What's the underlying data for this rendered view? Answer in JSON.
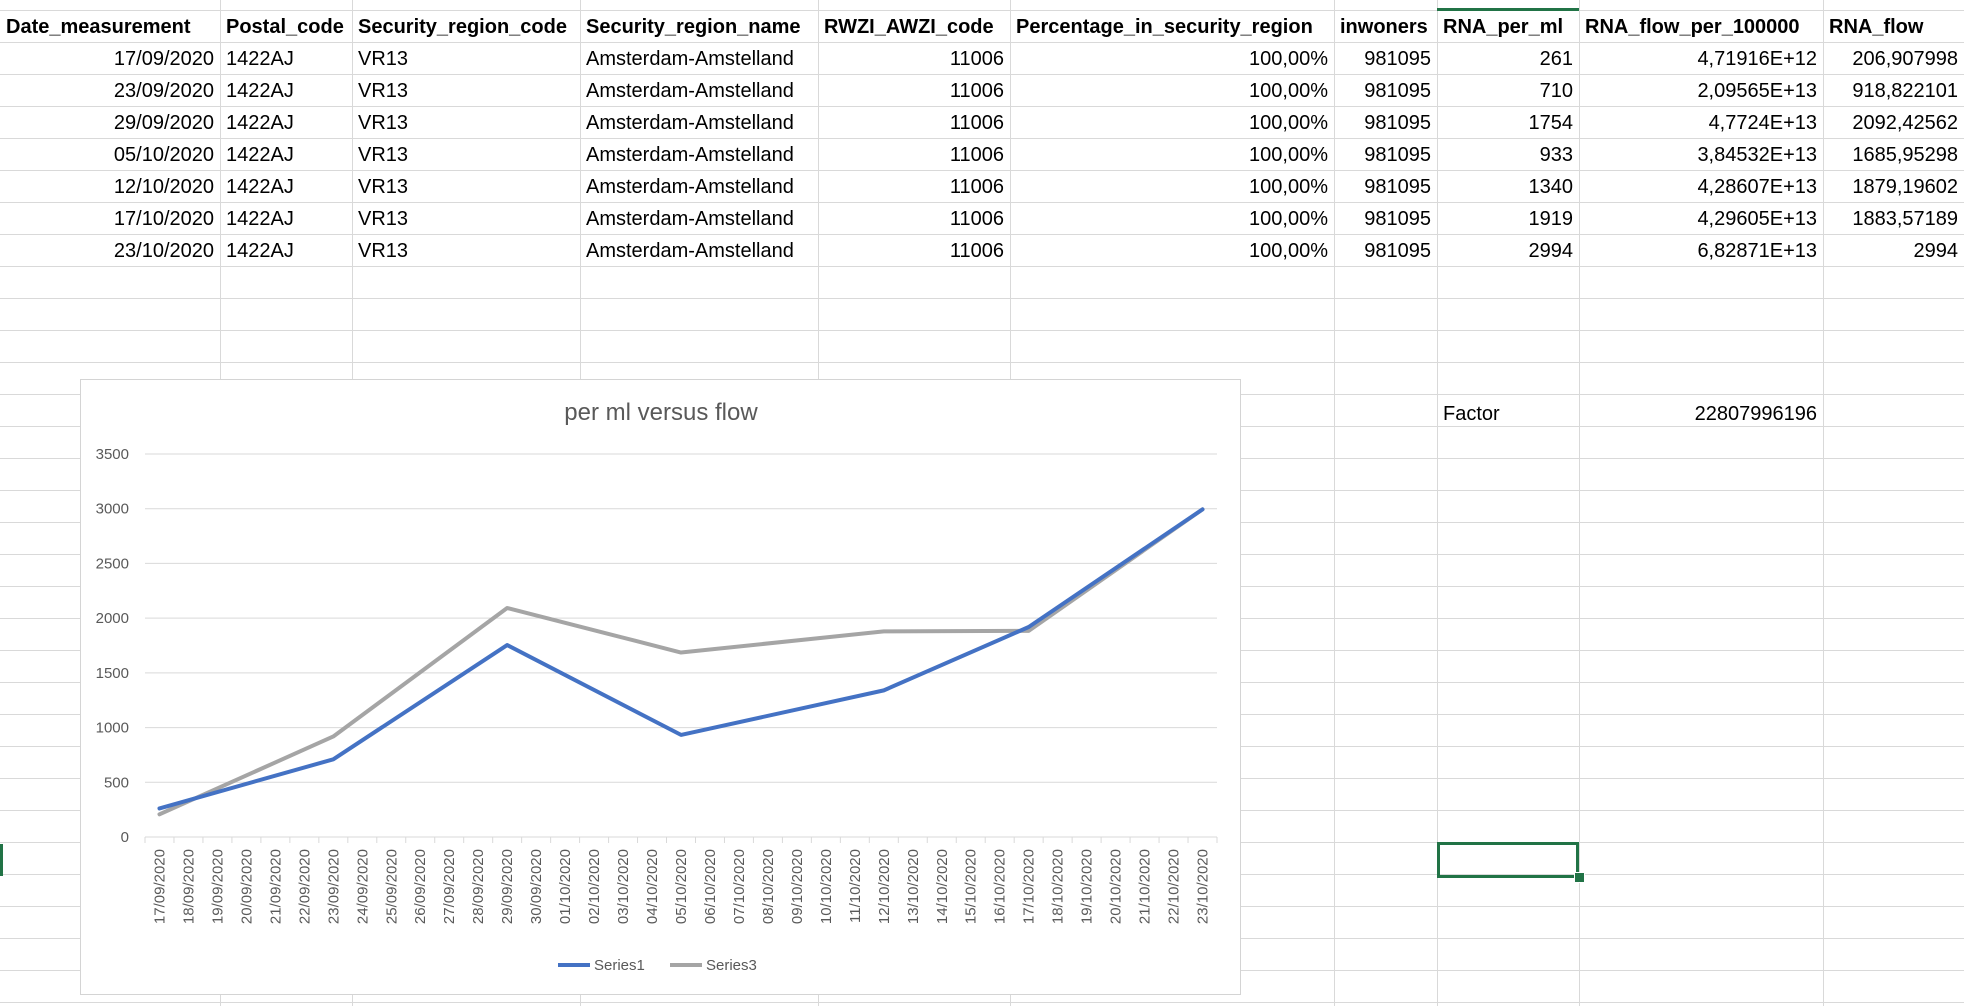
{
  "sheet": {
    "headers": [
      "Date_measurement",
      "Postal_code",
      "Security_region_code",
      "Security_region_name",
      "RWZI_AWZI_code",
      "Percentage_in_security_region",
      "inwoners",
      "RNA_per_ml",
      "RNA_flow_per_100000",
      "RNA_flow"
    ],
    "rows": [
      [
        "17/09/2020",
        "1422AJ",
        "VR13",
        "Amsterdam-Amstelland",
        "11006",
        "100,00%",
        "981095",
        "261",
        "4,71916E+12",
        "206,907998"
      ],
      [
        "23/09/2020",
        "1422AJ",
        "VR13",
        "Amsterdam-Amstelland",
        "11006",
        "100,00%",
        "981095",
        "710",
        "2,09565E+13",
        "918,822101"
      ],
      [
        "29/09/2020",
        "1422AJ",
        "VR13",
        "Amsterdam-Amstelland",
        "11006",
        "100,00%",
        "981095",
        "1754",
        "4,7724E+13",
        "2092,42562"
      ],
      [
        "05/10/2020",
        "1422AJ",
        "VR13",
        "Amsterdam-Amstelland",
        "11006",
        "100,00%",
        "981095",
        "933",
        "3,84532E+13",
        "1685,95298"
      ],
      [
        "12/10/2020",
        "1422AJ",
        "VR13",
        "Amsterdam-Amstelland",
        "11006",
        "100,00%",
        "981095",
        "1340",
        "4,28607E+13",
        "1879,19602"
      ],
      [
        "17/10/2020",
        "1422AJ",
        "VR13",
        "Amsterdam-Amstelland",
        "11006",
        "100,00%",
        "981095",
        "1919",
        "4,29605E+13",
        "1883,57189"
      ],
      [
        "23/10/2020",
        "1422AJ",
        "VR13",
        "Amsterdam-Amstelland",
        "11006",
        "100,00%",
        "981095",
        "2994",
        "6,82871E+13",
        "2994"
      ]
    ],
    "factor_label": "Factor",
    "factor_value": "22807996196"
  },
  "chart_data": {
    "type": "line",
    "title": "per ml versus flow",
    "xlabel": "",
    "ylabel": "",
    "ylim": [
      0,
      3500
    ],
    "yticks": [
      0,
      500,
      1000,
      1500,
      2000,
      2500,
      3000,
      3500
    ],
    "x": [
      "17/09/2020",
      "18/09/2020",
      "19/09/2020",
      "20/09/2020",
      "21/09/2020",
      "22/09/2020",
      "23/09/2020",
      "24/09/2020",
      "25/09/2020",
      "26/09/2020",
      "27/09/2020",
      "28/09/2020",
      "29/09/2020",
      "30/09/2020",
      "01/10/2020",
      "02/10/2020",
      "03/10/2020",
      "04/10/2020",
      "05/10/2020",
      "06/10/2020",
      "07/10/2020",
      "08/10/2020",
      "09/10/2020",
      "10/10/2020",
      "11/10/2020",
      "12/10/2020",
      "13/10/2020",
      "14/10/2020",
      "15/10/2020",
      "16/10/2020",
      "17/10/2020",
      "18/10/2020",
      "19/10/2020",
      "20/10/2020",
      "21/10/2020",
      "22/10/2020",
      "23/10/2020"
    ],
    "series": [
      {
        "name": "Series1",
        "color": "#4472c4",
        "points": [
          [
            "17/09/2020",
            261
          ],
          [
            "23/09/2020",
            710
          ],
          [
            "29/09/2020",
            1754
          ],
          [
            "05/10/2020",
            933
          ],
          [
            "12/10/2020",
            1340
          ],
          [
            "17/10/2020",
            1919
          ],
          [
            "23/10/2020",
            2994
          ]
        ]
      },
      {
        "name": "Series3",
        "color": "#a5a5a5",
        "points": [
          [
            "17/09/2020",
            206.907998
          ],
          [
            "23/09/2020",
            918.822101
          ],
          [
            "29/09/2020",
            2092.42562
          ],
          [
            "05/10/2020",
            1685.95298
          ],
          [
            "12/10/2020",
            1879.19602
          ],
          [
            "17/10/2020",
            1883.57189
          ],
          [
            "23/10/2020",
            2994
          ]
        ]
      }
    ],
    "grid": true,
    "legend": "bottom"
  }
}
